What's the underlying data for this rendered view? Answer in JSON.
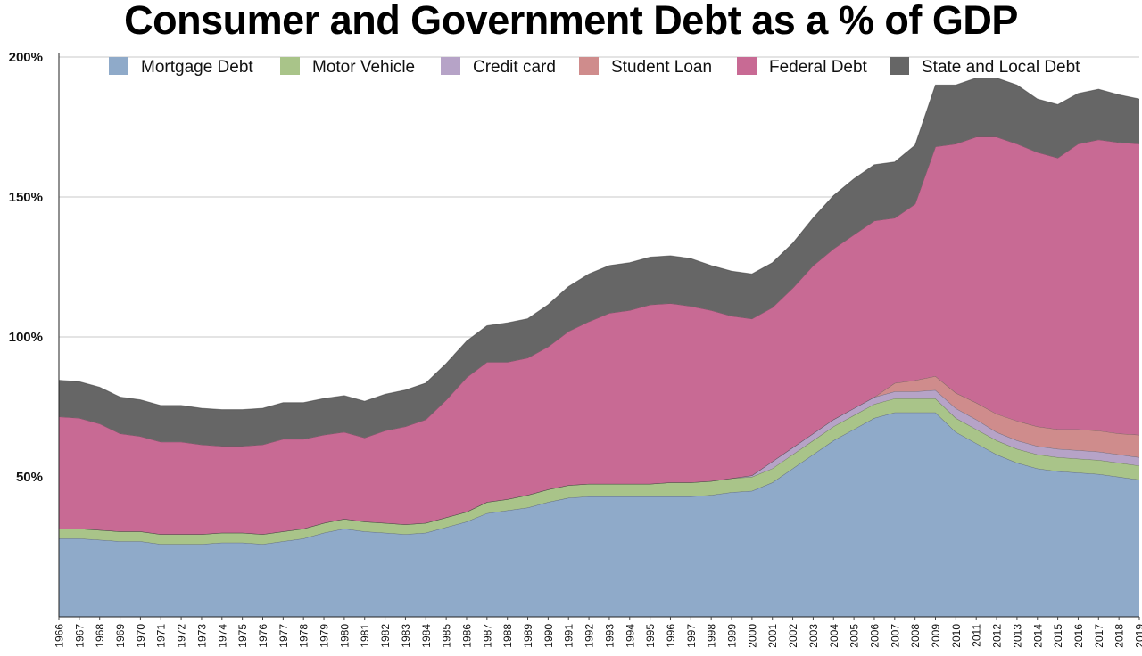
{
  "chart_data": {
    "type": "area",
    "stacked": true,
    "title": "Consumer and Government Debt as a % of GDP",
    "xlabel": "",
    "ylabel": "",
    "x": [
      1966,
      1967,
      1968,
      1969,
      1970,
      1971,
      1972,
      1973,
      1974,
      1975,
      1976,
      1977,
      1978,
      1979,
      1980,
      1981,
      1982,
      1983,
      1984,
      1985,
      1986,
      1987,
      1988,
      1989,
      1990,
      1991,
      1992,
      1993,
      1994,
      1995,
      1996,
      1997,
      1998,
      1999,
      2000,
      2001,
      2002,
      2003,
      2004,
      2005,
      2006,
      2007,
      2008,
      2009,
      2010,
      2011,
      2012,
      2013,
      2014,
      2015,
      2016,
      2017,
      2018,
      2019
    ],
    "x_tick_labels": [
      "1966",
      "1967",
      "1968",
      "1969",
      "1970",
      "1971",
      "1972",
      "1973",
      "1974",
      "1975",
      "1976",
      "1977",
      "1978",
      "1979",
      "1980",
      "1981",
      "1982",
      "1983",
      "1984",
      "1985",
      "1986",
      "1987",
      "1988",
      "1989",
      "1990",
      "1991",
      "1992",
      "1993",
      "1994",
      "1995",
      "1996",
      "1997",
      "1998",
      "1999",
      "2000",
      "2001",
      "2002",
      "2003",
      "2004",
      "2005",
      "2006",
      "2007",
      "2008",
      "2009",
      "2010",
      "2011",
      "2012",
      "2013",
      "2014",
      "2015",
      "2016",
      "2017",
      "2018",
      "2019"
    ],
    "ylim": [
      0,
      200
    ],
    "y_ticks": [
      50,
      100,
      150,
      200
    ],
    "y_tick_labels": [
      "50%",
      "100%",
      "150%",
      "200%"
    ],
    "grid": "horizontal",
    "legend_position": "top",
    "series": [
      {
        "name": "Mortgage Debt",
        "color": "#8faac9",
        "values": [
          28,
          28,
          27.5,
          27,
          27,
          26,
          26,
          26,
          26.5,
          26.5,
          26,
          27,
          28,
          30,
          31.5,
          30.5,
          30,
          29.5,
          30,
          32,
          34,
          37,
          38,
          39,
          41,
          42.5,
          43,
          43,
          43,
          43,
          43,
          43,
          43.5,
          44.5,
          45,
          48,
          53,
          58,
          63,
          67,
          71,
          73,
          73,
          73,
          66,
          62,
          58,
          55,
          53,
          52,
          51.5,
          51,
          50,
          49
        ]
      },
      {
        "name": "Motor Vehicle",
        "color": "#a9c489",
        "values": [
          3.5,
          3.5,
          3.5,
          3.5,
          3.5,
          3.5,
          3.5,
          3.5,
          3.5,
          3.5,
          3.5,
          3.5,
          3.5,
          3.5,
          3.5,
          3.5,
          3.5,
          3.5,
          3.5,
          3.5,
          3.5,
          4,
          4,
          4.5,
          4.5,
          4.5,
          4.5,
          4.5,
          4.5,
          4.5,
          5,
          5,
          5,
          5,
          5,
          5,
          5,
          5,
          5,
          5,
          5,
          5,
          5,
          5,
          5,
          5,
          5,
          5,
          5,
          5,
          5,
          5,
          5,
          5
        ]
      },
      {
        "name": "Credit card",
        "color": "#b6a3c7",
        "values": [
          0,
          0,
          0,
          0,
          0,
          0,
          0,
          0,
          0,
          0,
          0,
          0,
          0,
          0,
          0,
          0,
          0,
          0,
          0,
          0,
          0,
          0,
          0,
          0,
          0,
          0,
          0,
          0,
          0,
          0,
          0,
          0,
          0,
          0,
          0.5,
          2.5,
          2.5,
          2.5,
          2.5,
          2.5,
          2.5,
          2.5,
          2.5,
          3,
          3.5,
          3.5,
          3,
          3,
          3,
          3,
          3,
          3,
          3,
          3
        ]
      },
      {
        "name": "Student Loan",
        "color": "#cf8c8c",
        "values": [
          0,
          0,
          0,
          0,
          0,
          0,
          0,
          0,
          0,
          0,
          0,
          0,
          0,
          0,
          0,
          0,
          0,
          0,
          0,
          0,
          0,
          0,
          0,
          0,
          0,
          0,
          0,
          0,
          0,
          0,
          0,
          0,
          0,
          0,
          0,
          0,
          0,
          0,
          0,
          0,
          0,
          3,
          4,
          5,
          5.5,
          6,
          6.5,
          7,
          7,
          7,
          7.5,
          7.5,
          7.5,
          8
        ]
      },
      {
        "name": "Federal Debt",
        "color": "#c86a94",
        "values": [
          40,
          39.5,
          38,
          35,
          34,
          33,
          33,
          32,
          31,
          31,
          32,
          33,
          32,
          31.5,
          31,
          30,
          33,
          35,
          37,
          42,
          48,
          50,
          49,
          49,
          51,
          55,
          58,
          61,
          62,
          64,
          64,
          63,
          61,
          58,
          56,
          55,
          57,
          60,
          61,
          62,
          63,
          59,
          63,
          82,
          89,
          95,
          99,
          99,
          98,
          97,
          102,
          104,
          104,
          104
        ]
      },
      {
        "name": "State and Local Debt",
        "color": "#666666",
        "values": [
          13,
          13,
          13,
          13,
          13,
          13,
          13,
          13,
          13,
          13,
          13,
          13,
          13,
          13,
          13,
          13,
          13,
          13,
          13,
          13,
          13,
          13,
          14,
          14,
          15,
          16,
          17,
          17,
          17,
          17,
          17,
          17,
          16,
          16,
          16,
          16,
          16,
          17,
          19,
          20,
          20,
          20,
          21,
          22,
          21,
          21,
          21,
          21,
          19,
          19,
          18,
          18,
          17,
          16
        ]
      }
    ]
  }
}
